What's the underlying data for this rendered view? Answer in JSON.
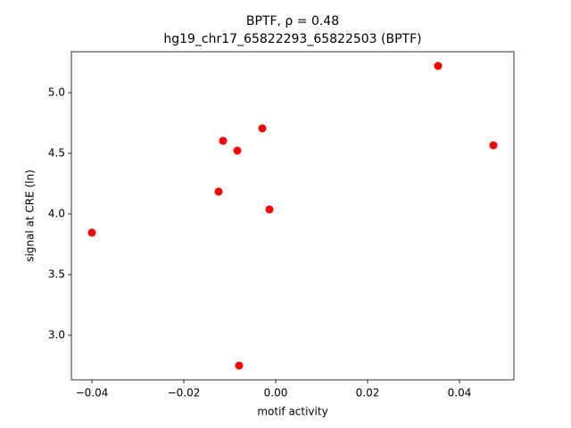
{
  "chart_data": {
    "type": "scatter",
    "title": "BPTF, ρ = 0.48",
    "subtitle": "hg19_chr17_65822293_65822503 (BPTF)",
    "x_label": "motif activity",
    "y_label": "signal at CRE (ln)",
    "color": "#ff0000",
    "x": [
      -0.04,
      -0.01243,
      -0.01146,
      -0.00835,
      -0.00796,
      -0.00291,
      -0.00136,
      0.03534,
      0.04738
    ],
    "values": [
      3.846,
      4.184,
      4.603,
      4.522,
      2.75,
      4.706,
      4.037,
      5.221,
      4.566
    ],
    "xlim": [
      -0.04447,
      0.05184
    ],
    "ylim": [
      2.632,
      5.338
    ],
    "xticks": [
      {
        "value": -0.04,
        "label": "−0.04"
      },
      {
        "value": -0.02,
        "label": "−0.02"
      },
      {
        "value": 0,
        "label": "0.00"
      },
      0.02,
      0.04
    ],
    "yticks": [
      {
        "value": 3,
        "label": "3.0"
      },
      3.5,
      {
        "value": 4,
        "label": "4.0"
      },
      4.5,
      {
        "value": 5,
        "label": "5.0"
      }
    ],
    "grid": false
  }
}
